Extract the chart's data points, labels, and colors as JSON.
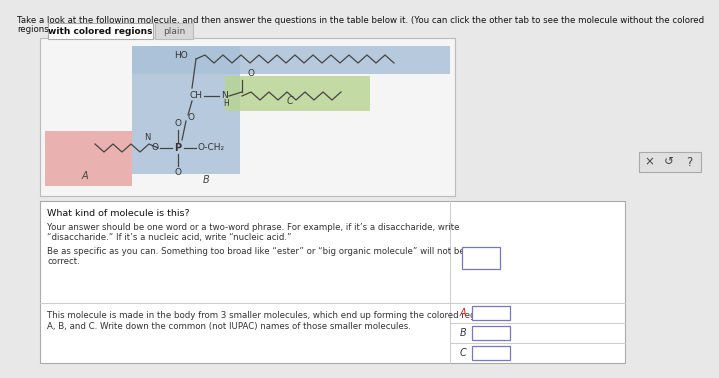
{
  "bg_color": "#e8e8e8",
  "title_line1": "Take a look at the following molecule, and then answer the questions in the table below it. (You can click the other tab to see the molecule without the colored",
  "title_line2": "regions.)",
  "tab1": "with colored regions",
  "tab2": "plain",
  "region_A_color": "#e8a0a0",
  "region_B_color": "#a8c0d8",
  "region_C_color": "#b8d490",
  "q1_line1": "What kind of molecule is this?",
  "q1_line2": "Your answer should be one word or a two-word phrase. For example, if it’s a disaccharide, write",
  "q1_line3": "“disaccharide.” If it’s a nucleic acid, write “nucleic acid.”",
  "q1_line4": "Be as specific as you can. Something too broad like “ester” or “big organic molecule” will not be graded",
  "q1_line5": "correct.",
  "q2_line1": "This molecule is made in the body from 3 smaller molecules, which end up forming the colored regions",
  "q2_line2": "A, B, and C. Write down the common (not IUPAC) names of those smaller molecules.",
  "abc_labels": [
    "A",
    "B",
    "C"
  ],
  "btn_symbols": [
    "×",
    "↺",
    "?"
  ]
}
